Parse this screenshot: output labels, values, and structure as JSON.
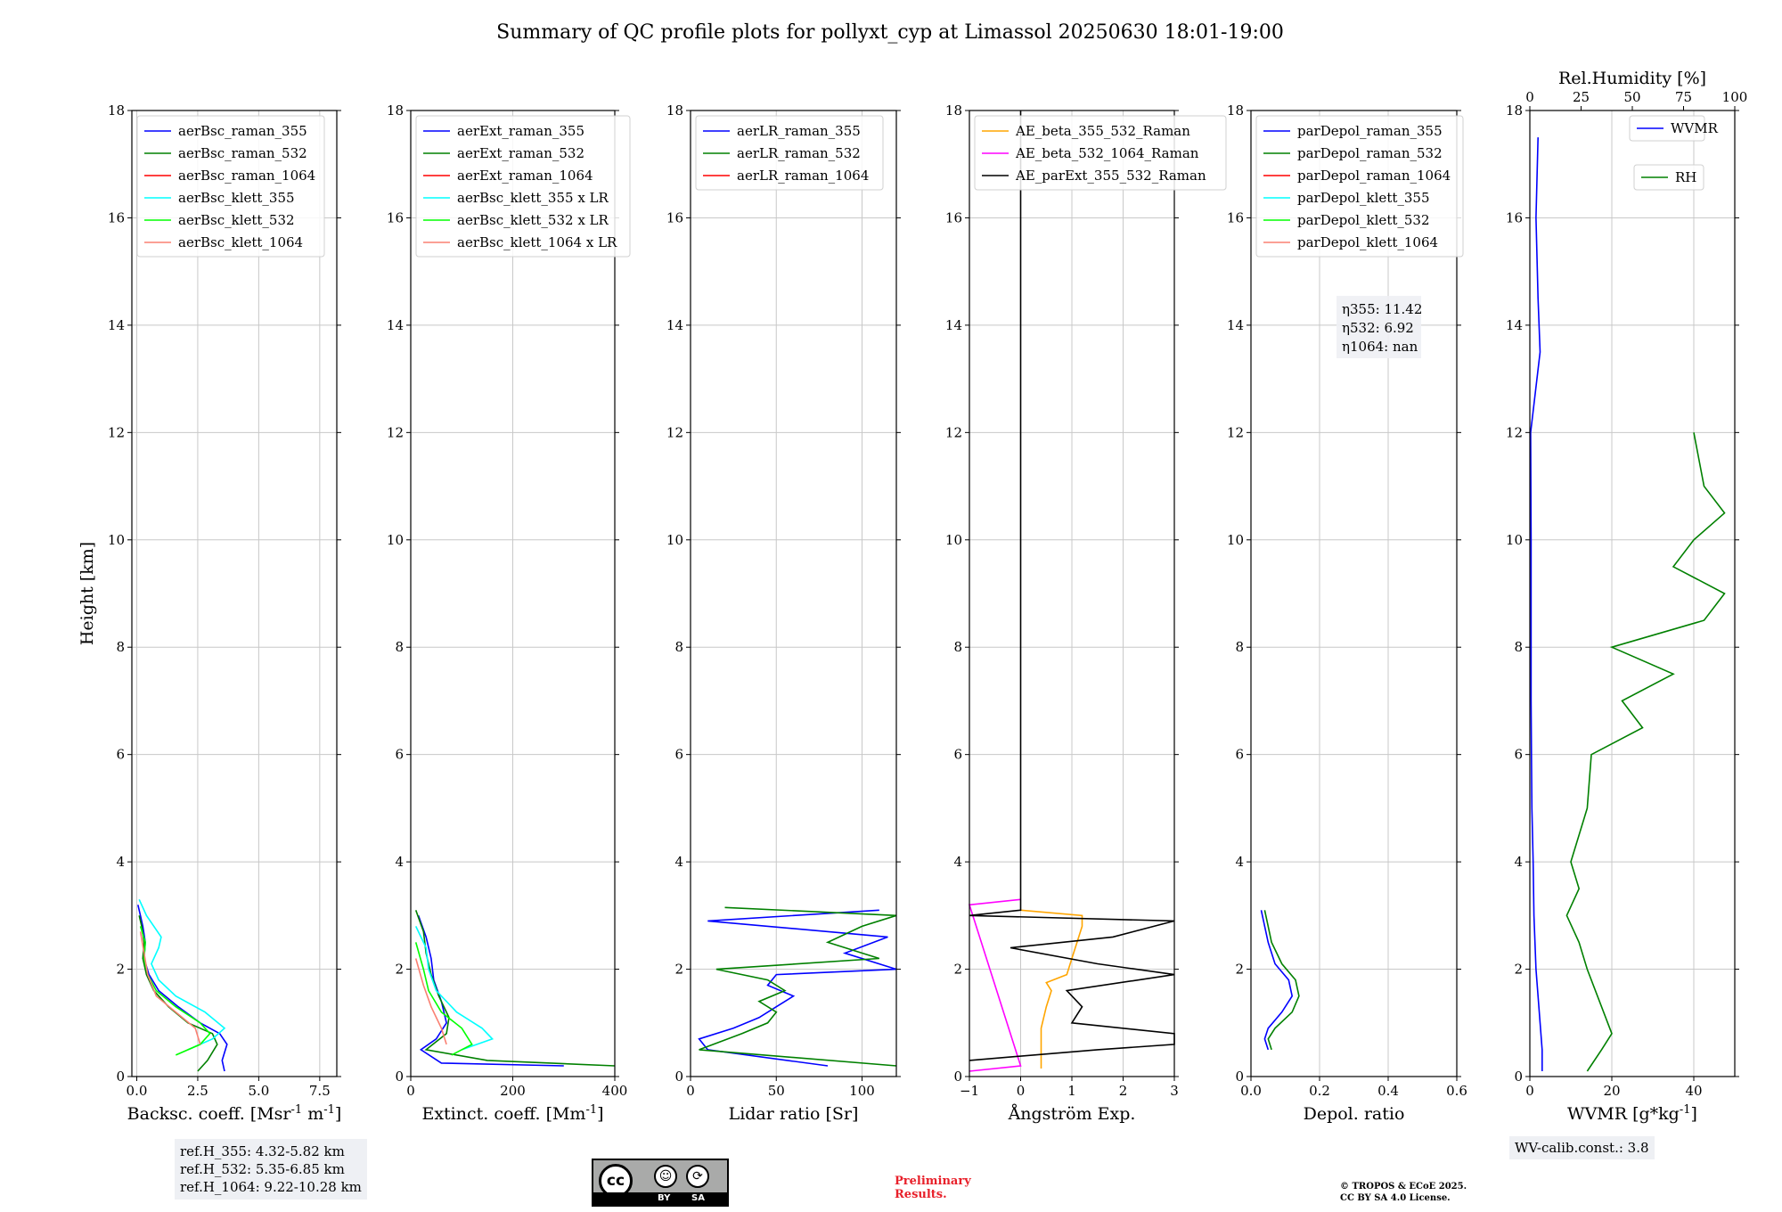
{
  "title": "Summary of QC profile plots for pollyxt_cyp at Limassol 20250630 18:01-19:00",
  "colors": {
    "raman_355": "#0000ff",
    "raman_532": "#008000",
    "raman_1064": "#ff0000",
    "klett_355": "#00ffff",
    "klett_532": "#00ff00",
    "klett_1064": "#fa8072",
    "ae_beta_355_532": "#ffa500",
    "ae_beta_532_1064": "#ff00ff",
    "ae_parext": "#000000"
  },
  "chart_data": [
    {
      "type": "line",
      "xlabel": "Backsc. coeff. [Msr$^{-1}$ m$^{-1}$]",
      "ylabel": "Height [km]",
      "xlim": [
        -0.2,
        8.2
      ],
      "ylim": [
        0,
        18
      ],
      "xticks": [
        0,
        2.5,
        5,
        7.5
      ],
      "xtick_labels": [
        "0.0",
        "2.5",
        "5.0",
        "7.5"
      ],
      "legend": [
        "aerBsc_raman_355",
        "aerBsc_raman_532",
        "aerBsc_raman_1064",
        "aerBsc_klett_355",
        "aerBsc_klett_532",
        "aerBsc_klett_1064"
      ],
      "series": [
        {
          "name": "aerBsc_raman_355",
          "color": "#0000ff",
          "y": [
            0.1,
            0.3,
            0.6,
            0.8,
            1.0,
            1.3,
            1.6,
            1.9,
            2.2,
            2.5,
            2.8,
            3.0,
            3.2
          ],
          "x": [
            3.6,
            3.5,
            3.7,
            3.4,
            2.6,
            1.7,
            0.9,
            0.5,
            0.3,
            0.35,
            0.25,
            0.15,
            0.05
          ]
        },
        {
          "name": "aerBsc_raman_532",
          "color": "#008000",
          "y": [
            0.1,
            0.3,
            0.6,
            0.8,
            1.0,
            1.3,
            1.6,
            1.9,
            2.2,
            2.5,
            2.8,
            3.0
          ],
          "x": [
            2.5,
            2.9,
            3.3,
            3.1,
            2.1,
            1.3,
            0.7,
            0.4,
            0.25,
            0.3,
            0.2,
            0.1
          ]
        },
        {
          "name": "aerBsc_klett_355",
          "color": "#00ffff",
          "y": [
            0.5,
            0.7,
            0.9,
            1.2,
            1.5,
            1.8,
            2.1,
            2.4,
            2.6,
            3.0,
            3.3
          ],
          "x": [
            2.1,
            3.1,
            3.6,
            2.8,
            1.6,
            0.9,
            0.6,
            0.9,
            1.0,
            0.4,
            0.1
          ]
        },
        {
          "name": "aerBsc_klett_532",
          "color": "#00ff00",
          "y": [
            0.4,
            0.6,
            0.8,
            1.0,
            1.3,
            1.6,
            1.9,
            2.2,
            2.5,
            2.8
          ],
          "x": [
            1.6,
            2.6,
            3.0,
            2.6,
            1.6,
            0.8,
            0.45,
            0.3,
            0.35,
            0.15
          ]
        },
        {
          "name": "aerBsc_klett_1064",
          "color": "#fa8072",
          "y": [
            0.6,
            0.9,
            1.2,
            1.5,
            1.9,
            2.3,
            2.7
          ],
          "x": [
            2.6,
            2.4,
            1.6,
            0.8,
            0.45,
            0.3,
            0.15
          ]
        }
      ],
      "annotation": [
        "ref.H_355: 4.32-5.82 km",
        "ref.H_532: 5.35-6.85 km",
        "ref.H_1064: 9.22-10.28 km"
      ]
    },
    {
      "type": "line",
      "xlabel": "Extinct. coeff. [Mm$^{-1}$]",
      "xlim": [
        0,
        400
      ],
      "ylim": [
        0,
        18
      ],
      "xticks": [
        0,
        200,
        400
      ],
      "xtick_labels": [
        "0",
        "200",
        "400"
      ],
      "legend": [
        "aerExt_raman_355",
        "aerExt_raman_532",
        "aerExt_raman_1064",
        "aerBsc_klett_355 x LR",
        "aerBsc_klett_532 x LR",
        "aerBsc_klett_1064 x LR"
      ],
      "series": [
        {
          "name": "aerExt_raman_355",
          "color": "#0000ff",
          "y": [
            0.2,
            0.25,
            0.5,
            0.7,
            1.0,
            1.4,
            1.8,
            2.2,
            2.6,
            3.0
          ],
          "x": [
            300,
            60,
            20,
            50,
            70,
            60,
            45,
            40,
            30,
            15
          ]
        },
        {
          "name": "aerExt_raman_532",
          "color": "#008000",
          "y": [
            0.2,
            0.3,
            0.5,
            0.8,
            1.1,
            1.5,
            1.9,
            2.3,
            2.7,
            3.1
          ],
          "x": [
            400,
            150,
            30,
            70,
            75,
            55,
            40,
            30,
            25,
            10
          ]
        },
        {
          "name": "aerBsc_klett_355 x LR",
          "color": "#00ffff",
          "y": [
            0.5,
            0.7,
            0.9,
            1.2,
            1.6,
            2.0,
            2.4,
            2.8
          ],
          "x": [
            100,
            160,
            140,
            90,
            50,
            35,
            30,
            10
          ]
        },
        {
          "name": "aerBsc_klett_532 x LR",
          "color": "#00ff00",
          "y": [
            0.4,
            0.6,
            0.9,
            1.2,
            1.6,
            2.0,
            2.5
          ],
          "x": [
            80,
            120,
            100,
            60,
            35,
            25,
            10
          ]
        },
        {
          "name": "aerBsc_klett_1064 x LR",
          "color": "#fa8072",
          "y": [
            0.6,
            0.9,
            1.3,
            1.7,
            2.2
          ],
          "x": [
            70,
            60,
            40,
            25,
            10
          ]
        }
      ]
    },
    {
      "type": "line",
      "xlabel": "Lidar ratio [Sr]",
      "xlim": [
        0,
        120
      ],
      "ylim": [
        0,
        18
      ],
      "xticks": [
        0,
        50,
        100
      ],
      "xtick_labels": [
        "0",
        "50",
        "100"
      ],
      "legend": [
        "aerLR_raman_355",
        "aerLR_raman_532",
        "aerLR_raman_1064"
      ],
      "series": [
        {
          "name": "aerLR_raman_355",
          "color": "#0000ff",
          "y": [
            0.2,
            0.5,
            0.7,
            0.9,
            1.1,
            1.3,
            1.5,
            1.7,
            1.9,
            2.0,
            2.3,
            2.6,
            2.9,
            3.1
          ],
          "x": [
            80,
            10,
            5,
            25,
            40,
            50,
            60,
            45,
            50,
            120,
            90,
            115,
            10,
            110
          ]
        },
        {
          "name": "aerLR_raman_532",
          "color": "#008000",
          "y": [
            0.2,
            0.5,
            0.8,
            1.0,
            1.2,
            1.4,
            1.6,
            1.8,
            2.0,
            2.2,
            2.5,
            2.8,
            3.0,
            3.15
          ],
          "x": [
            120,
            5,
            30,
            45,
            50,
            40,
            55,
            45,
            15,
            110,
            80,
            100,
            120,
            20
          ]
        }
      ]
    },
    {
      "type": "line",
      "xlabel": "Ångström Exp.",
      "xlim": [
        -1,
        3
      ],
      "ylim": [
        0,
        18
      ],
      "xticks": [
        -1,
        0,
        1,
        2,
        3
      ],
      "xtick_labels": [
        "−1",
        "0",
        "1",
        "2",
        "3"
      ],
      "legend": [
        "AE_beta_355_532_Raman",
        "AE_beta_532_1064_Raman",
        "AE_parExt_355_532_Raman"
      ],
      "series": [
        {
          "name": "AE_beta_355_532_Raman",
          "color": "#ffa500",
          "y": [
            0.15,
            0.5,
            0.9,
            1.3,
            1.6,
            1.75,
            1.9,
            2.2,
            2.5,
            2.8,
            3.0,
            3.1
          ],
          "x": [
            0.4,
            0.4,
            0.4,
            0.5,
            0.6,
            0.5,
            0.9,
            1.0,
            1.1,
            1.2,
            1.2,
            0.0
          ]
        },
        {
          "name": "AE_beta_532_1064_Raman",
          "color": "#ff00ff",
          "y": [
            0.1,
            0.2,
            3.2,
            3.3
          ],
          "x": [
            -1.0,
            0.0,
            -1.0,
            0.0
          ]
        },
        {
          "name": "AE_parExt_355_532_Raman",
          "color": "#000000",
          "y": [
            0.3,
            0.5,
            0.6,
            0.8,
            1.0,
            1.3,
            1.6,
            1.9,
            2.1,
            2.4,
            2.6,
            2.9,
            3.0,
            3.1,
            18.0
          ],
          "x": [
            -1.0,
            1.5,
            3.0,
            3.0,
            1.0,
            1.2,
            0.9,
            3.0,
            1.5,
            -0.2,
            1.8,
            3.0,
            -1.0,
            0.0,
            0.0
          ]
        }
      ]
    },
    {
      "type": "line",
      "xlabel": "Depol. ratio",
      "xlim": [
        0,
        0.6
      ],
      "ylim": [
        0,
        18
      ],
      "xticks": [
        0,
        0.2,
        0.4,
        0.6
      ],
      "xtick_labels": [
        "0.0",
        "0.2",
        "0.4",
        "0.6"
      ],
      "legend": [
        "parDepol_raman_355",
        "parDepol_raman_532",
        "parDepol_raman_1064",
        "parDepol_klett_355",
        "parDepol_klett_532",
        "parDepol_klett_1064"
      ],
      "series": [
        {
          "name": "parDepol_raman_355",
          "color": "#0000ff",
          "y": [
            0.5,
            0.7,
            0.9,
            1.2,
            1.5,
            1.8,
            2.1,
            2.5,
            2.8,
            3.1
          ],
          "x": [
            0.05,
            0.04,
            0.05,
            0.09,
            0.12,
            0.11,
            0.07,
            0.05,
            0.04,
            0.03
          ]
        },
        {
          "name": "parDepol_raman_532",
          "color": "#008000",
          "y": [
            0.5,
            0.7,
            0.9,
            1.2,
            1.5,
            1.8,
            2.1,
            2.5,
            2.8,
            3.1
          ],
          "x": [
            0.06,
            0.05,
            0.07,
            0.12,
            0.14,
            0.13,
            0.09,
            0.06,
            0.05,
            0.04
          ]
        }
      ],
      "annotation": [
        "η355: 11.42",
        "η532: 6.92",
        "η1064: nan"
      ]
    },
    {
      "type": "line",
      "xlabel": "WVMR [g*kg$^{-1}$]",
      "x2label": "Rel.Humidity [%]",
      "xlim": [
        0,
        50
      ],
      "x2lim": [
        0,
        100
      ],
      "ylim": [
        0,
        18
      ],
      "xticks": [
        0,
        20,
        40
      ],
      "xtick_labels": [
        "0",
        "20",
        "40"
      ],
      "x2ticks": [
        0,
        25,
        50,
        75,
        100
      ],
      "x2tick_labels": [
        "0",
        "25",
        "50",
        "75",
        "100"
      ],
      "legend": [
        "WVMR",
        "RH"
      ],
      "series": [
        {
          "name": "WVMR",
          "color": "#0000ff",
          "y": [
            0.1,
            0.5,
            1.0,
            1.5,
            2.0,
            3.0,
            4.0,
            5.0,
            6.0,
            7.0,
            8.0,
            10.0,
            12.0,
            13.5,
            14.5,
            16.0,
            17.5
          ],
          "x": [
            3.0,
            3.0,
            2.5,
            2.0,
            1.5,
            1.0,
            0.8,
            0.5,
            0.4,
            0.3,
            0.3,
            0.3,
            0.2,
            2.5,
            2.0,
            1.5,
            2.0
          ]
        },
        {
          "name": "RH",
          "x_axis": "top",
          "color": "#008000",
          "y": [
            0.1,
            0.5,
            0.8,
            1.0,
            1.5,
            2.0,
            2.5,
            3.0,
            3.5,
            4.0,
            5.0,
            6.0,
            6.5,
            7.0,
            7.5,
            8.0,
            8.5,
            9.0,
            9.5,
            10.0,
            10.5,
            11.0,
            12.0
          ],
          "x": [
            28,
            35,
            40,
            38,
            33,
            28,
            24,
            18,
            24,
            20,
            28,
            30,
            55,
            45,
            70,
            40,
            85,
            95,
            70,
            80,
            95,
            85,
            80
          ]
        }
      ],
      "annotation": "WV-calib.const.: 3.8"
    }
  ],
  "footer": {
    "preliminary": [
      "Preliminary",
      "Results."
    ],
    "copyright": [
      "© TROPOS & ECoE 2025.",
      "CC BY SA 4.0 License."
    ],
    "license_badge": "cc-by-sa-badge",
    "license_by": "BY",
    "license_sa": "SA",
    "license_cc": "cc"
  }
}
